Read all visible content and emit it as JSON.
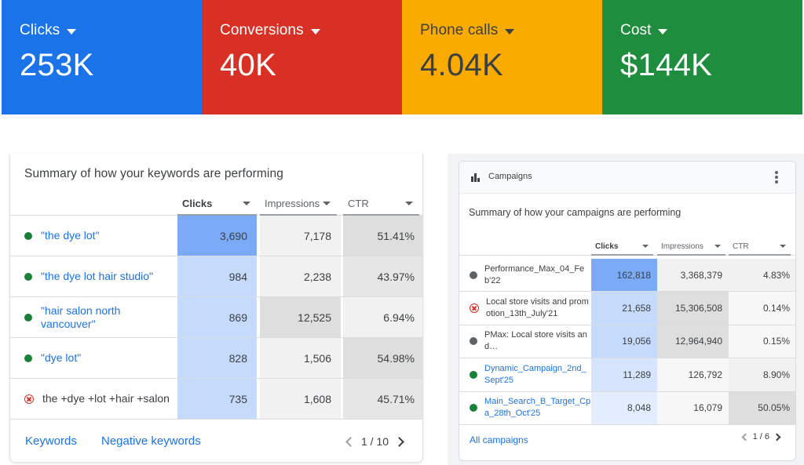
{
  "scorecards": [
    {
      "label": "Clicks",
      "value": "253K",
      "color": "#1a73e8"
    },
    {
      "label": "Conversions",
      "value": "40K",
      "color": "#d93025"
    },
    {
      "label": "Phone calls",
      "value": "4.04K",
      "color": "#f9ab00"
    },
    {
      "label": "Cost",
      "value": "$144K",
      "color": "#1e8e3e"
    }
  ],
  "keywords_card": {
    "title": "Summary of how your keywords are performing",
    "columns": [
      "Clicks",
      "Impressions",
      "CTR"
    ],
    "rows": [
      {
        "status": "enabled",
        "name": "\"the dye lot\"",
        "clicks": "3,690",
        "impressions": "7,178",
        "ctr": "51.41%"
      },
      {
        "status": "enabled",
        "name": "\"the dye lot hair studio\"",
        "clicks": "984",
        "impressions": "2,238",
        "ctr": "43.97%"
      },
      {
        "status": "enabled",
        "name": "\"hair salon north vancouver\"",
        "clicks": "869",
        "impressions": "12,525",
        "ctr": "6.94%"
      },
      {
        "status": "enabled",
        "name": "\"dye lot\"",
        "clicks": "828",
        "impressions": "1,506",
        "ctr": "54.98%"
      },
      {
        "status": "removed",
        "name": "the +dye +lot +hair +salon",
        "clicks": "735",
        "impressions": "1,608",
        "ctr": "45.71%"
      }
    ],
    "footer_links": [
      "Keywords",
      "Negative keywords"
    ],
    "pagination": "1 / 10"
  },
  "campaigns_card": {
    "header_label": "Campaigns",
    "title": "Summary of how your campaigns are performing",
    "columns": [
      "Clicks",
      "Impressions",
      "CTR"
    ],
    "rows": [
      {
        "status": "paused",
        "name": "Performance_Max_04_Feb'22",
        "clicks": "162,818",
        "impressions": "3,368,379",
        "ctr": "4.83%"
      },
      {
        "status": "removed",
        "name": "Local store visits and promotion_13th_July'21",
        "clicks": "21,658",
        "impressions": "15,306,508",
        "ctr": "0.14%"
      },
      {
        "status": "paused",
        "name": "PMax: Local store visits and…",
        "clicks": "19,056",
        "impressions": "12,964,940",
        "ctr": "0.15%"
      },
      {
        "status": "enabled",
        "name": "Dynamic_Campaign_2nd_Sept'25",
        "clicks": "11,289",
        "impressions": "126,792",
        "ctr": "8.90%"
      },
      {
        "status": "enabled",
        "name": "Main_Search_B_Target_Cpa_28th_Oct'25",
        "clicks": "8,048",
        "impressions": "16,079",
        "ctr": "50.05%"
      }
    ],
    "footer_link": "All campaigns",
    "pagination": "1 / 6"
  },
  "heat_colors": {
    "clicks": [
      "#7baaf7",
      "#c6dafc",
      "#c6dafc",
      "#c6dafc",
      "#c6dafc"
    ],
    "impressions": [
      "#f1f1f1",
      "#f1f1f1",
      "#dedede",
      "#f1f1f1",
      "#f1f1f1"
    ],
    "ctr": [
      "#dedede",
      "#e6e6e6",
      "#f1f1f1",
      "#dedede",
      "#e6e6e6"
    ],
    "camp_clicks": [
      "#7baaf7",
      "#c6dafc",
      "#c6dafc",
      "#d6e4fd",
      "#e3edfd"
    ],
    "camp_impressions": [
      "#f1f1f1",
      "#dedede",
      "#dedede",
      "#f7f7f7",
      "#f7f7f7"
    ],
    "camp_ctr": [
      "#f1f1f1",
      "#f7f7f7",
      "#f7f7f7",
      "#f1f1f1",
      "#dedede"
    ]
  },
  "icons": [
    "caret-down-icon",
    "status-dot-icon",
    "removed-icon",
    "chevron-left-icon",
    "chevron-right-icon",
    "bar-chart-icon",
    "more-vert-icon"
  ]
}
